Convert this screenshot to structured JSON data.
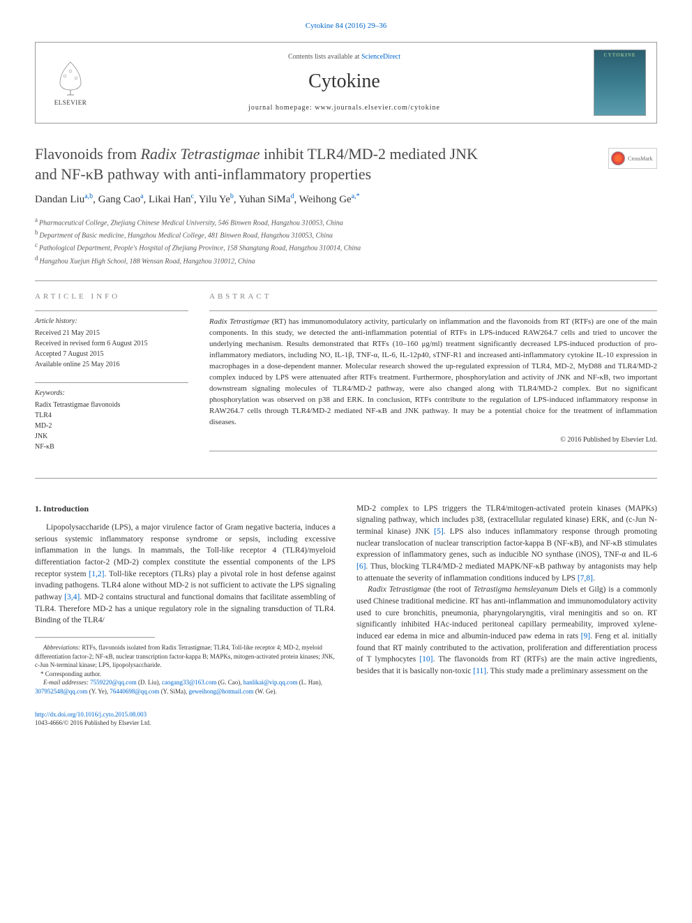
{
  "top_citation": "Cytokine 84 (2016) 29–36",
  "header": {
    "contents_text": "Contents lists available at ",
    "contents_link": "ScienceDirect",
    "journal_name": "Cytokine",
    "homepage_label": "journal homepage: ",
    "homepage_url": "www.journals.elsevier.com/cytokine",
    "publisher": "ELSEVIER",
    "cover_label": "CYTOKINE"
  },
  "crossmark": "CrossMark",
  "title": {
    "line1_pre": "Flavonoids from ",
    "line1_italic": "Radix Tetrastigmae",
    "line1_post": " inhibit TLR4/MD-2 mediated JNK",
    "line2": "and NF-κB pathway with anti-inflammatory properties"
  },
  "authors": [
    {
      "name": "Dandan Liu",
      "aff": "a,b"
    },
    {
      "name": "Gang Cao",
      "aff": "a"
    },
    {
      "name": "Likai Han",
      "aff": "c"
    },
    {
      "name": "Yilu Ye",
      "aff": "b"
    },
    {
      "name": "Yuhan SiMa",
      "aff": "d"
    },
    {
      "name": "Weihong Ge",
      "aff": "a,",
      "corr": "*"
    }
  ],
  "affiliations": [
    {
      "sup": "a",
      "text": "Pharmaceutical College, Zhejiang Chinese Medical University, 546 Binwen Road, Hangzhou 310053, China"
    },
    {
      "sup": "b",
      "text": "Department of Basic medicine, Hangzhou Medical College, 481 Binwen Road, Hangzhou 310053, China"
    },
    {
      "sup": "c",
      "text": "Pathological Department, People's Hospital of Zhejiang Province, 158 Shangtang Road, Hangzhou 310014, China"
    },
    {
      "sup": "d",
      "text": "Hangzhou Xuejun High School, 188 Wensan Road, Hangzhou 310012, China"
    }
  ],
  "info_heading": "ARTICLE INFO",
  "history": {
    "label": "Article history:",
    "items": [
      "Received 21 May 2015",
      "Received in revised form 6 August 2015",
      "Accepted 7 August 2015",
      "Available online 25 May 2016"
    ]
  },
  "keywords": {
    "label": "Keywords:",
    "items": [
      "Radix Tetrastigmae flavonoids",
      "TLR4",
      "MD-2",
      "JNK",
      "NF-κB"
    ]
  },
  "abstract_heading": "ABSTRACT",
  "abstract": {
    "italic_start": "Radix Tetrastigmae",
    "text": " (RT) has immunomodulatory activity, particularly on inflammation and the flavonoids from RT (RTFs) are one of the main components. In this study, we detected the anti-inflammation potential of RTFs in LPS-induced RAW264.7 cells and tried to uncover the underlying mechanism. Results demonstrated that RTFs (10–160 μg/ml) treatment significantly decreased LPS-induced production of pro-inflammatory mediators, including NO, IL-1β, TNF-α, IL-6, IL-12p40, sTNF-R1 and increased anti-inflammatory cytokine IL-10 expression in macrophages in a dose-dependent manner. Molecular research showed the up-regulated expression of TLR4, MD-2, MyD88 and TLR4/MD-2 complex induced by LPS were attenuated after RTFs treatment. Furthermore, phosphorylation and activity of JNK and NF-κB, two important downstream signaling molecules of TLR4/MD-2 pathway, were also changed along with TLR4/MD-2 complex. But no significant phosphorylation was observed on p38 and ERK. In conclusion, RTFs contribute to the regulation of LPS-induced inflammatory response in RAW264.7 cells through TLR4/MD-2 mediated NF-κB and JNK pathway. It may be a potential choice for the treatment of inflammation diseases."
  },
  "copyright": "© 2016 Published by Elsevier Ltd.",
  "section1_heading": "1. Introduction",
  "col1_p1": {
    "pre": "Lipopolysaccharide (LPS), a major virulence factor of Gram negative bacteria, induces a serious systemic inflammatory response syndrome or sepsis, including excessive inflammation in the lungs. In mammals, the Toll-like receptor 4 (TLR4)/myeloid differentiation factor-2 (MD-2) complex constitute the essential components of the LPS receptor system ",
    "ref1": "[1,2]",
    "mid": ". Toll-like receptors (TLRs) play a pivotal role in host defense against invading pathogens. TLR4 alone without MD-2 is not sufficient to activate the LPS signaling pathway ",
    "ref2": "[3,4]",
    "post": ". MD-2 contains structural and functional domains that facilitate assembling of TLR4. Therefore MD-2 has a unique regulatory role in the signaling transduction of TLR4. Binding of the TLR4/"
  },
  "col2_p1": {
    "pre": "MD-2 complex to LPS triggers the TLR4/mitogen-activated protein kinases (MAPKs) signaling pathway, which includes p38, (extracellular regulated kinase) ERK, and (c-Jun N-terminal kinase) JNK ",
    "ref1": "[5]",
    "mid1": ". LPS also induces inflammatory response through promoting nuclear translocation of nuclear transcription factor-kappa B (NF-κB), and NF-κB stimulates expression of inflammatory genes, such as inducible NO synthase (iNOS), TNF-α and IL-6 ",
    "ref2": "[6]",
    "mid2": ". Thus, blocking TLR4/MD-2 mediated MAPK/NF-κB pathway by antagonists may help to attenuate the severity of inflammation conditions induced by LPS ",
    "ref3": "[7,8]",
    "post": "."
  },
  "col2_p2": {
    "italic1": "Radix Tetrastigmae",
    "pre": " (the root of ",
    "italic2": "Tetrastigma hemsleyanum",
    "mid1": " Diels et Gilg) is a commonly used Chinese traditional medicine. RT has anti-inflammation and immunomodulatory activity used to cure bronchitis, pneumonia, pharyngolaryngitis, viral meningitis and so on. RT significantly inhibited HAc-induced peritoneal capillary permeability, improved xylene-induced ear edema in mice and albumin-induced paw edema in rats ",
    "ref1": "[9]",
    "mid2": ". Feng et al. initially found that RT mainly contributed to the activation, proliferation and differentiation process of T lymphocytes ",
    "ref2": "[10]",
    "mid3": ". The flavonoids from RT (RTFs) are the main active ingredients, besides that it is basically non-toxic ",
    "ref3": "[11]",
    "post": ". This study made a preliminary assessment on the"
  },
  "abbreviations": {
    "label": "Abbreviations:",
    "text": " RTFs, flavonoids isolated from Radix Tetrastigmae; TLR4, Toll-like receptor 4; MD-2, myeloid differentiation factor-2; NF-κB, nuclear transcription factor-kappa B; MAPKs, mitogen-activated protein kinases; JNK, c-Jun N-terminal kinase; LPS, lipopolysaccharide."
  },
  "corresponding": "Corresponding author.",
  "emails": {
    "label": "E-mail addresses:",
    "items": [
      {
        "email": "7559220@qq.com",
        "name": "(D. Liu)"
      },
      {
        "email": "caogang33@163.com",
        "name": "(G. Cao)"
      },
      {
        "email": "hanlikai@vip.qq.com",
        "name": "(L. Han)"
      },
      {
        "email": "307952548@qq.com",
        "name": "(Y. Ye)"
      },
      {
        "email": "76440698@qq.com",
        "name": "(Y. SiMa)"
      },
      {
        "email": "geweihong@hotmail.com",
        "name": "(W. Ge)"
      }
    ]
  },
  "footer": {
    "doi": "http://dx.doi.org/10.1016/j.cyto.2015.08.003",
    "issn": "1043-4666/© 2016 Published by Elsevier Ltd."
  },
  "colors": {
    "link": "#0066cc",
    "text": "#333333",
    "heading_gray": "#888888",
    "border": "#999999"
  }
}
